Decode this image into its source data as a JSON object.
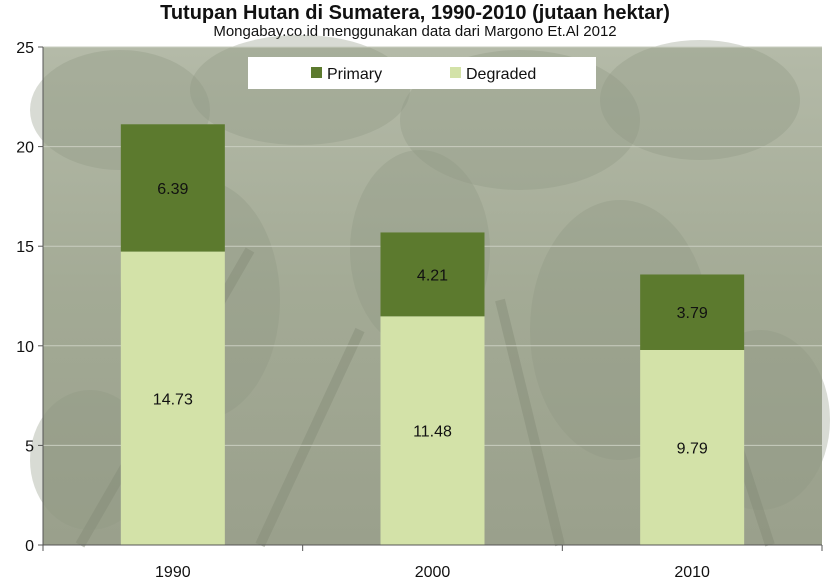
{
  "colors": {
    "primary": "#5c7a2e",
    "degraded": "#d3e2a8",
    "background_photo": "#a7ae9c",
    "background_accent": "#8e9784"
  },
  "chart_data": {
    "type": "bar",
    "stacked": true,
    "title": "Tutupan Hutan di Sumatera, 1990-2010 (jutaan hektar)",
    "subtitle": "Mongabay.co.id menggunakan data dari Margono Et.Al 2012",
    "categories": [
      "1990",
      "2000",
      "2010"
    ],
    "series": [
      {
        "name": "Degraded",
        "color": "#d3e2a8",
        "values": [
          14.73,
          11.48,
          9.79
        ],
        "labels": [
          "14.73",
          "11.48",
          "9.79"
        ]
      },
      {
        "name": "Primary",
        "color": "#5c7a2e",
        "values": [
          6.39,
          4.21,
          3.79
        ],
        "labels": [
          "6.39",
          "4.21",
          "3.79"
        ]
      }
    ],
    "legend": {
      "position": "top",
      "order": [
        "Primary",
        "Degraded"
      ]
    },
    "ylim": [
      0,
      25
    ],
    "yticks": [
      0,
      5,
      10,
      15,
      20,
      25
    ],
    "ytick_labels": [
      "0",
      "5",
      "10",
      "15",
      "20",
      "25"
    ],
    "xlabel": "",
    "ylabel": "",
    "grid": true,
    "background": "forest canopy photo"
  }
}
